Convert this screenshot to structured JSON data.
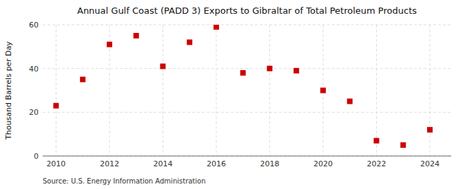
{
  "chart_data": {
    "type": "scatter",
    "title": "Annual Gulf Coast (PADD 3) Exports to Gibraltar of Total Petroleum Products",
    "ylabel": "Thousand Barrels per Day",
    "annotations": [
      "Source: U.S. Energy Information Administration"
    ],
    "x": [
      2010,
      2011,
      2012,
      2013,
      2014,
      2015,
      2016,
      2017,
      2018,
      2019,
      2020,
      2021,
      2022,
      2023,
      2024
    ],
    "values": [
      23,
      35,
      51,
      55,
      41,
      52,
      59,
      38,
      40,
      39,
      30,
      25,
      7,
      5,
      12
    ],
    "color": "#cc0000",
    "marker": "square",
    "xlim": [
      2009.5,
      2024.8
    ],
    "xticks": [
      2010,
      2012,
      2014,
      2016,
      2018,
      2020,
      2022,
      2024
    ],
    "ylim": [
      0,
      60
    ],
    "yticks": [
      0,
      20,
      40,
      60
    ],
    "grid": true
  }
}
